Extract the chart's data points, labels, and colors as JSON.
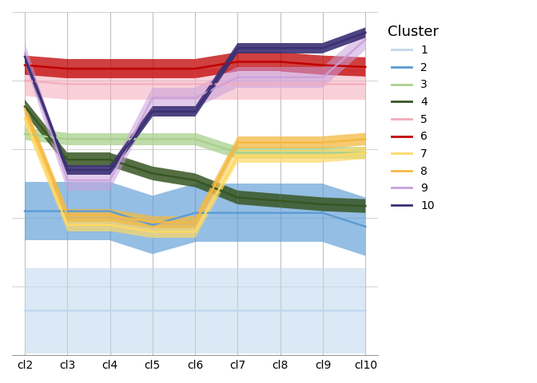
{
  "axes": [
    "cl2",
    "cl3",
    "cl4",
    "cl5",
    "cl6",
    "cl7",
    "cl8",
    "cl9",
    "cl10"
  ],
  "cluster_colors": {
    "1": "#BDD7EE",
    "2": "#5B9BD5",
    "3": "#A9D18E",
    "4": "#375623",
    "5": "#F4ABBA",
    "6": "#C00000",
    "7": "#FFD966",
    "8": "#F4B942",
    "9": "#C9A0DC",
    "10": "#3B3074"
  },
  "cluster_alpha": {
    "1": 0.55,
    "2": 0.65,
    "3": 0.75,
    "4": 0.85,
    "5": 0.55,
    "6": 0.75,
    "7": 0.7,
    "8": 0.75,
    "9": 0.55,
    "10": 0.9
  },
  "cluster_centers": {
    "1": [
      0.13,
      0.13,
      0.13,
      0.13,
      0.13,
      0.13,
      0.13,
      0.13,
      0.13
    ],
    "2": [
      0.42,
      0.42,
      0.42,
      0.38,
      0.415,
      0.415,
      0.415,
      0.415,
      0.375
    ],
    "3": [
      0.645,
      0.63,
      0.63,
      0.63,
      0.63,
      0.59,
      0.59,
      0.59,
      0.59
    ],
    "4": [
      0.725,
      0.57,
      0.57,
      0.53,
      0.51,
      0.46,
      0.45,
      0.44,
      0.435
    ],
    "5": [
      0.8,
      0.79,
      0.79,
      0.79,
      0.79,
      0.79,
      0.79,
      0.79,
      0.79
    ],
    "6": [
      0.845,
      0.835,
      0.835,
      0.835,
      0.835,
      0.855,
      0.855,
      0.845,
      0.84
    ],
    "7": [
      0.69,
      0.38,
      0.38,
      0.36,
      0.36,
      0.58,
      0.58,
      0.58,
      0.59
    ],
    "8": [
      0.718,
      0.408,
      0.408,
      0.388,
      0.388,
      0.62,
      0.62,
      0.62,
      0.63
    ],
    "9": [
      0.88,
      0.51,
      0.51,
      0.75,
      0.75,
      0.81,
      0.81,
      0.81,
      0.92
    ],
    "10": [
      0.87,
      0.54,
      0.54,
      0.71,
      0.71,
      0.895,
      0.895,
      0.895,
      0.94
    ]
  },
  "cluster_half_widths": {
    "1": [
      0.125,
      0.125,
      0.125,
      0.125,
      0.125,
      0.125,
      0.125,
      0.125,
      0.125
    ],
    "2": [
      0.085,
      0.085,
      0.085,
      0.085,
      0.085,
      0.085,
      0.085,
      0.085,
      0.085
    ],
    "3": [
      0.018,
      0.018,
      0.018,
      0.018,
      0.018,
      0.018,
      0.018,
      0.018,
      0.018
    ],
    "4": [
      0.02,
      0.02,
      0.02,
      0.02,
      0.02,
      0.02,
      0.02,
      0.02,
      0.02
    ],
    "5": [
      0.045,
      0.045,
      0.045,
      0.045,
      0.045,
      0.045,
      0.045,
      0.045,
      0.045
    ],
    "6": [
      0.028,
      0.028,
      0.028,
      0.028,
      0.028,
      0.028,
      0.028,
      0.028,
      0.028
    ],
    "7": [
      0.018,
      0.018,
      0.018,
      0.018,
      0.018,
      0.018,
      0.018,
      0.018,
      0.018
    ],
    "8": [
      0.018,
      0.018,
      0.018,
      0.018,
      0.018,
      0.018,
      0.018,
      0.018,
      0.018
    ],
    "9": [
      0.03,
      0.03,
      0.03,
      0.03,
      0.03,
      0.03,
      0.03,
      0.03,
      0.03
    ],
    "10": [
      0.015,
      0.015,
      0.015,
      0.015,
      0.015,
      0.015,
      0.015,
      0.015,
      0.015
    ]
  },
  "draw_order": [
    "1",
    "2",
    "5",
    "6",
    "3",
    "4",
    "7",
    "8",
    "9",
    "10"
  ],
  "background_color": "#FFFFFF",
  "grid_color": "#C0C0C0",
  "legend_title": "Cluster",
  "legend_order": [
    "1",
    "2",
    "3",
    "4",
    "5",
    "6",
    "7",
    "8",
    "9",
    "10"
  ],
  "figsize": [
    6.72,
    4.8
  ],
  "dpi": 100
}
